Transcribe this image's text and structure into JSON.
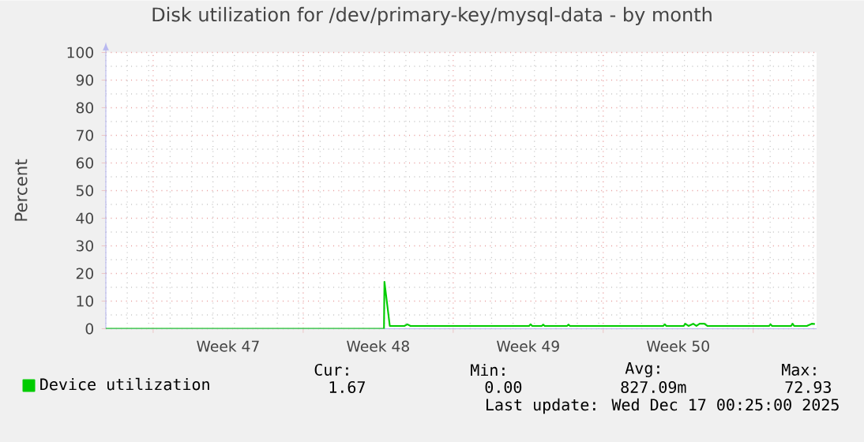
{
  "chart_data": {
    "type": "line",
    "title": "Disk utilization for /dev/primary-key/mysql-data - by month",
    "ylabel": "Percent",
    "xlim": [
      "2025-11-14T19:00",
      "2025-12-17T23:00"
    ],
    "xticks": [
      {
        "value": "2025-11-17",
        "label": null
      },
      {
        "value": "2025-11-20T12:00",
        "label": "Week 47"
      },
      {
        "value": "2025-11-24",
        "label": null
      },
      {
        "value": "2025-11-27T12:00",
        "label": "Week 48"
      },
      {
        "value": "2025-12-01",
        "label": null
      },
      {
        "value": "2025-12-04T12:00",
        "label": "Week 49"
      },
      {
        "value": "2025-12-08",
        "label": null
      },
      {
        "value": "2025-12-11T12:00",
        "label": "Week 50"
      },
      {
        "value": "2025-12-15",
        "label": null
      }
    ],
    "ylim": [
      0,
      100
    ],
    "yticks": [
      0,
      10,
      20,
      30,
      40,
      50,
      60,
      70,
      80,
      90,
      100
    ],
    "grid": true,
    "legend": "bottom",
    "series": [
      {
        "name": "Device utilization",
        "color": "#00cc00",
        "x": [
          "2025-11-14T19:00",
          "2025-11-27T18:30",
          "2025-11-27T19:00",
          "2025-11-28T01:00",
          "2025-11-28T17:17",
          "2025-11-28T20:38",
          "2025-11-29T00:14",
          "2025-12-04T12:58",
          "2025-12-04T14:38",
          "2025-12-04T16:34",
          "2025-12-05T03:07",
          "2025-12-05T04:48",
          "2025-12-05T06:29",
          "2025-12-06T07:26",
          "2025-12-06T09:07",
          "2025-12-06T10:48",
          "2025-12-10T19:12",
          "2025-12-10T20:53",
          "2025-12-10T22:48",
          "2025-12-11T18:14",
          "2025-12-11T19:55",
          "2025-12-11T23:31",
          "2025-12-12T04:48",
          "2025-12-12T08:24",
          "2025-12-12T12:00",
          "2025-12-12T17:17",
          "2025-12-12T20:38",
          "2025-12-15T17:46",
          "2025-12-15T19:26",
          "2025-12-15T21:07",
          "2025-12-16T18:29",
          "2025-12-16T20:10",
          "2025-12-16T21:50",
          "2025-12-17T12:00",
          "2025-12-17T17:31",
          "2025-12-17T21:07"
        ],
        "values": [
          0,
          0,
          17,
          1,
          1,
          1.6,
          1,
          1,
          1.6,
          1,
          1,
          1.5,
          1,
          1,
          1.5,
          1,
          1,
          1.6,
          1,
          1,
          1.8,
          1,
          1.8,
          1,
          1.8,
          1.8,
          1,
          1,
          1.6,
          1,
          1,
          1.8,
          1,
          1,
          1.8,
          1.7
        ]
      }
    ],
    "annotations": [
      "Cur:",
      "Min:",
      "Avg:",
      "Max:",
      "1.67",
      "0.00",
      "827.09m",
      "72.93",
      "Last update: Wed Dec 17 00:25:00 2025"
    ]
  }
}
